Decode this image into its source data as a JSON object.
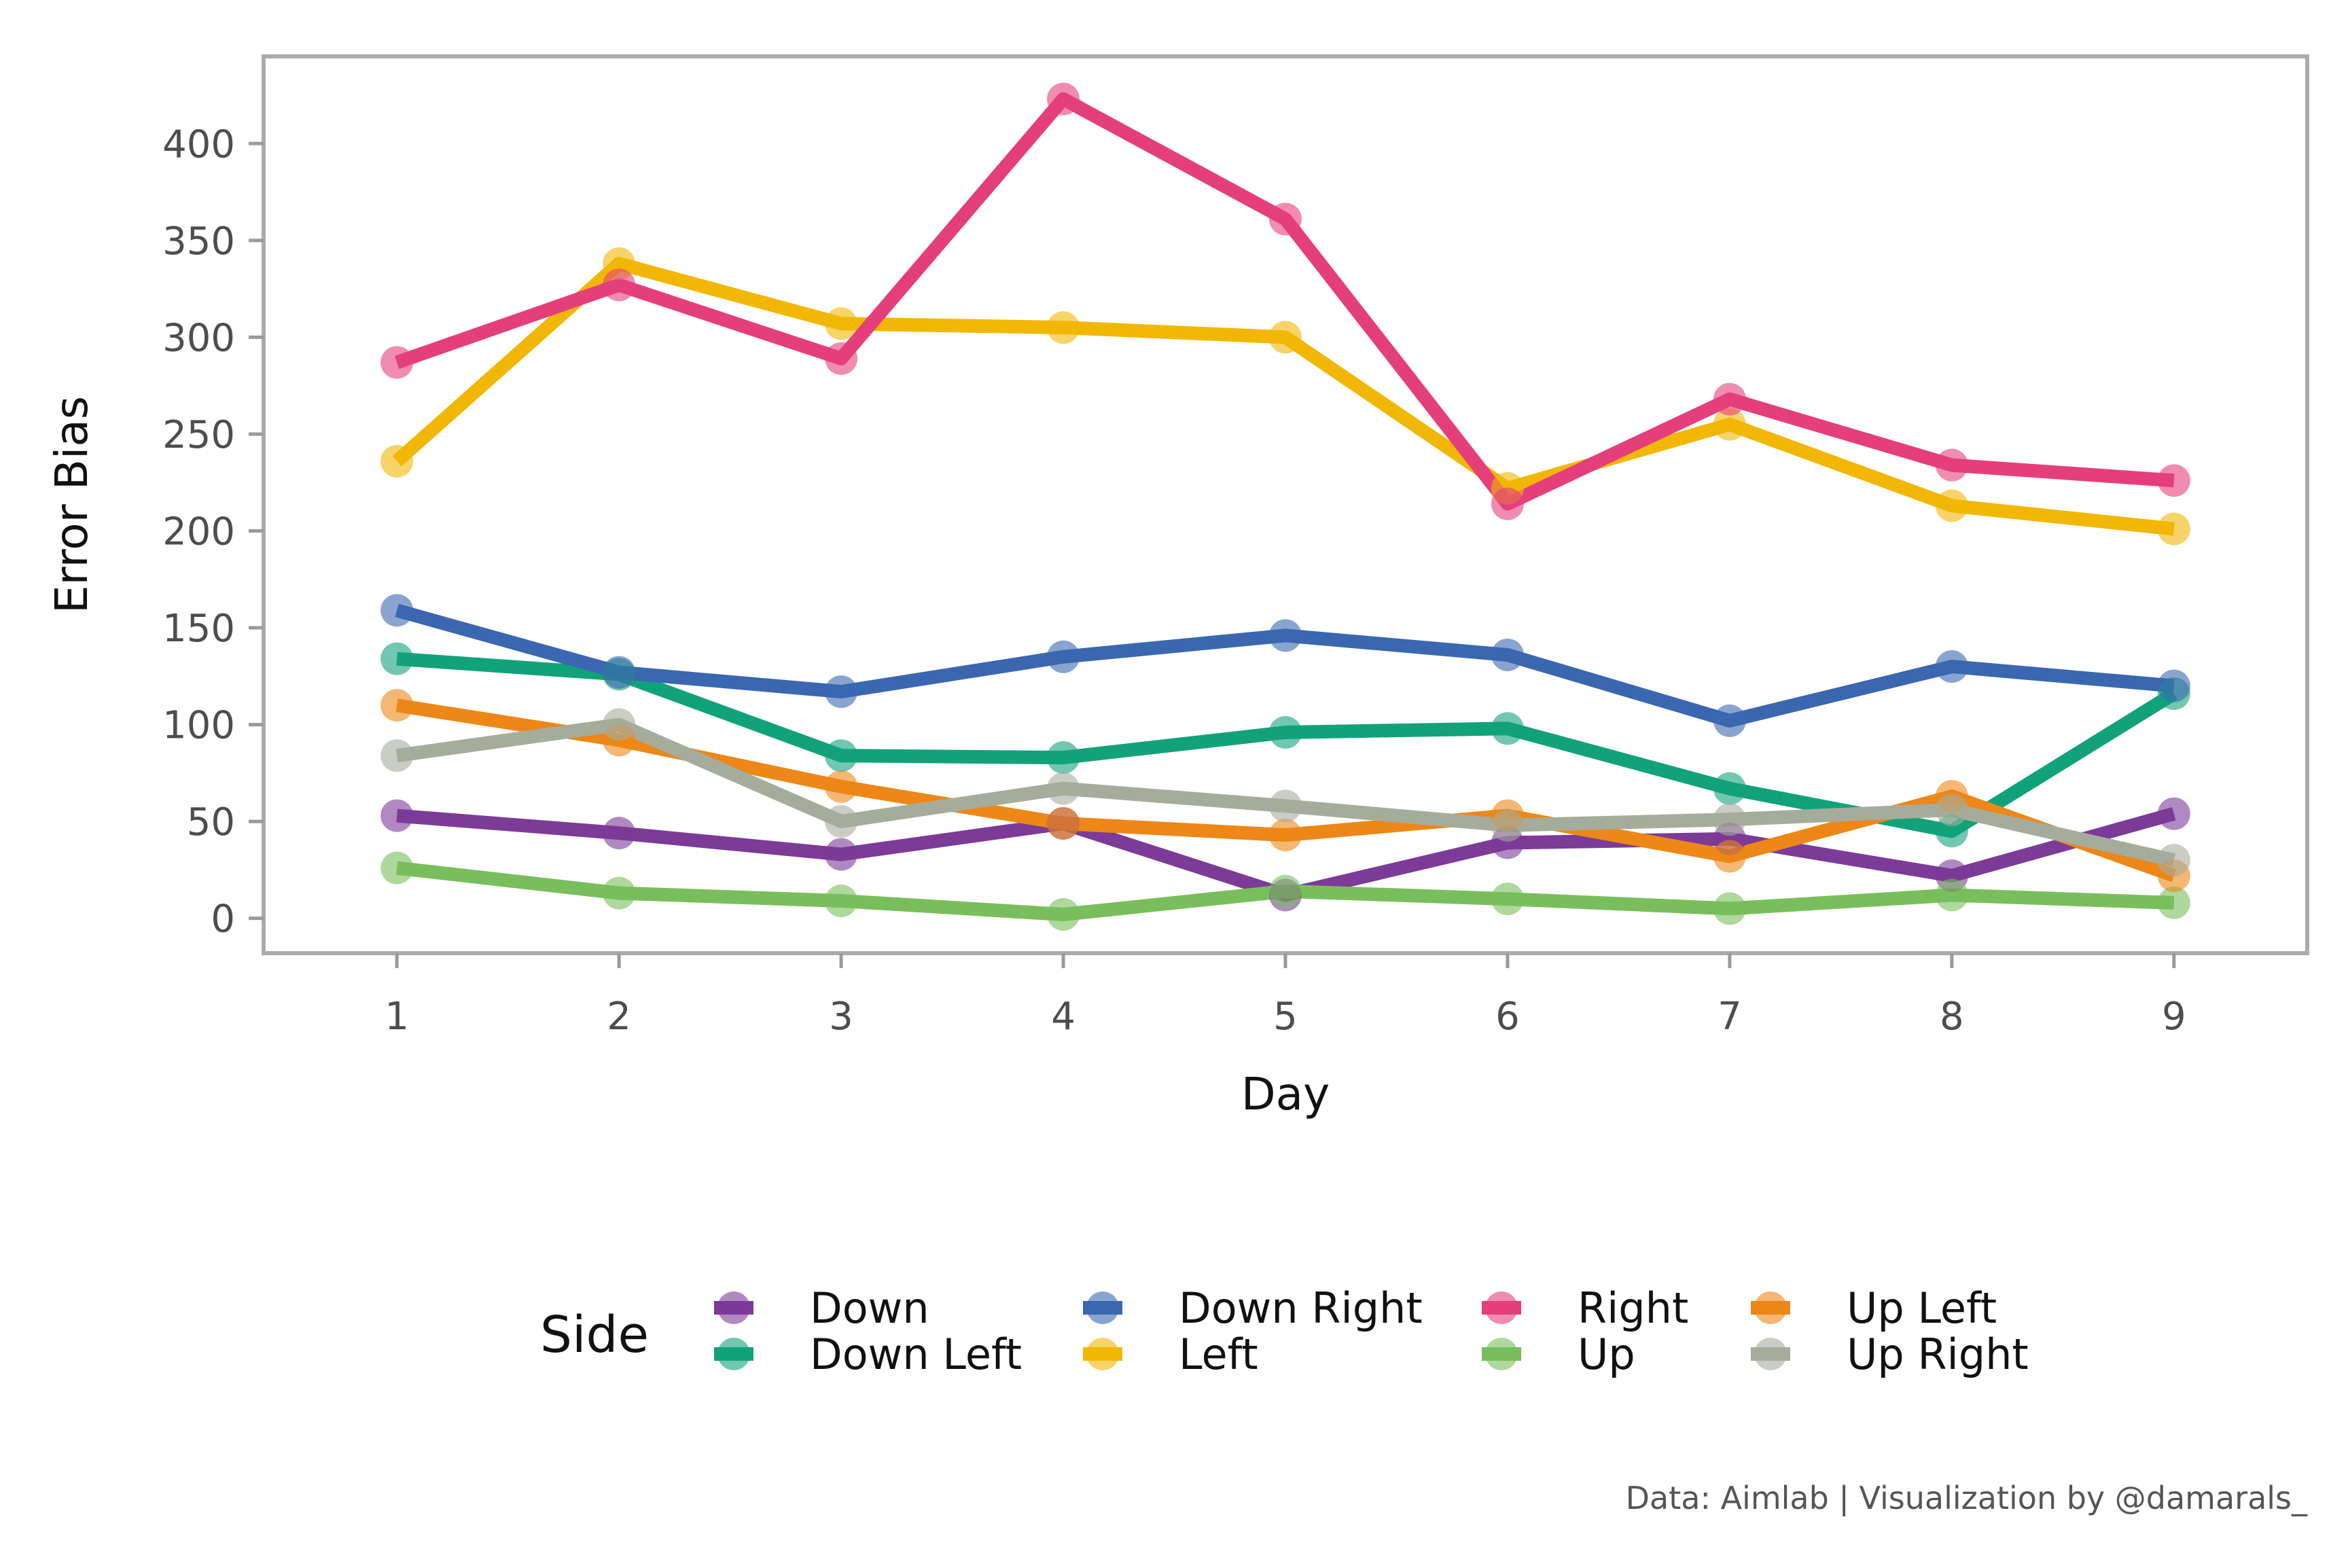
{
  "chart_data": {
    "type": "line",
    "title": "",
    "xlabel": "Day",
    "ylabel": "Error Bias",
    "x": [
      1,
      2,
      3,
      4,
      5,
      6,
      7,
      8,
      9
    ],
    "xlim": [
      0.4,
      9.6
    ],
    "ylim": [
      -18,
      445
    ],
    "yticks": [
      0,
      50,
      100,
      150,
      200,
      250,
      300,
      350,
      400
    ],
    "grid": false,
    "legend": {
      "title": "Side",
      "placement": "bottom",
      "columns": 4
    },
    "caption": "Data: Aimlab | Visualization by @damarals_",
    "series": [
      {
        "name": "Down",
        "color": "#7B3B97",
        "values": [
          53,
          44,
          33,
          49,
          12,
          39,
          41,
          22,
          54
        ]
      },
      {
        "name": "Down Left",
        "color": "#12A27A",
        "values": [
          134,
          126,
          84,
          83,
          96,
          98,
          67,
          45,
          116
        ]
      },
      {
        "name": "Down Right",
        "color": "#3A67B0",
        "values": [
          159,
          127,
          117,
          135,
          146,
          136,
          102,
          130,
          120
        ]
      },
      {
        "name": "Left",
        "color": "#F2B705",
        "values": [
          236,
          338,
          307,
          305,
          300,
          222,
          255,
          213,
          201
        ]
      },
      {
        "name": "Right",
        "color": "#E43F7B",
        "values": [
          287,
          327,
          289,
          423,
          361,
          214,
          268,
          234,
          226
        ]
      },
      {
        "name": "Up",
        "color": "#79BE5C",
        "values": [
          26,
          13,
          9,
          2,
          14,
          10,
          5,
          12,
          8
        ]
      },
      {
        "name": "Up Left",
        "color": "#EC8718",
        "values": [
          110,
          92,
          68,
          49,
          43,
          53,
          32,
          63,
          22
        ]
      },
      {
        "name": "Up Right",
        "color": "#A6AC9B",
        "values": [
          84,
          100,
          50,
          67,
          58,
          48,
          51,
          56,
          30
        ]
      }
    ]
  }
}
